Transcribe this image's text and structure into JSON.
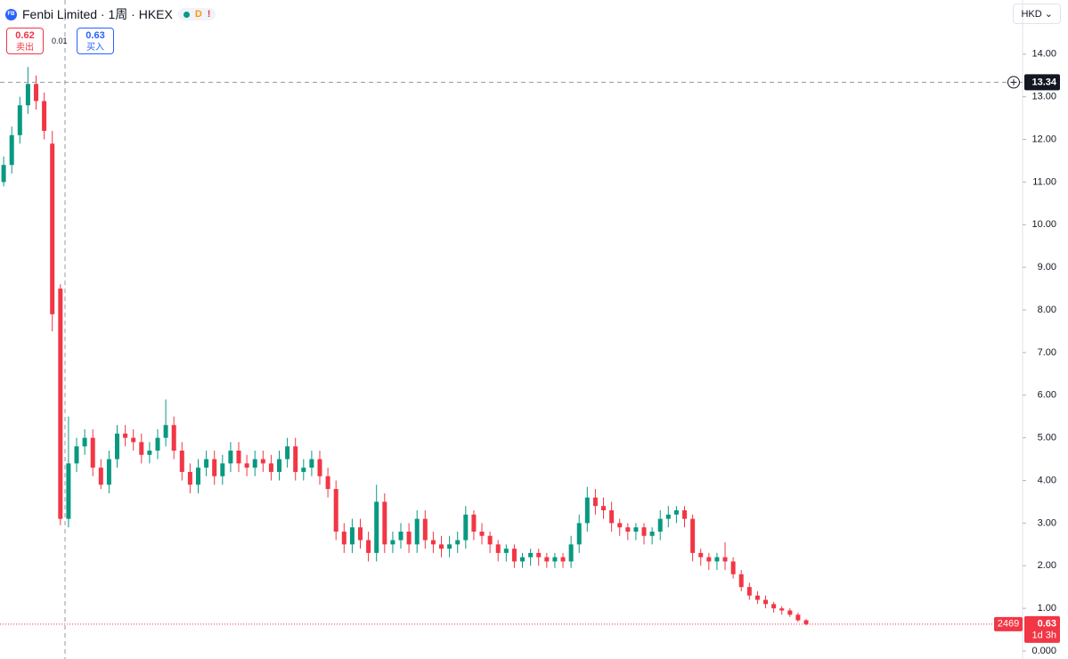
{
  "header": {
    "icon": "FB",
    "title": "Fenbi Limited · 1周 · HKEX",
    "badges": [
      "D",
      "!"
    ],
    "sell_price": 0.62,
    "sell_label": "卖出",
    "spread": 0.01,
    "buy_price": 0.63,
    "buy_label": "买入"
  },
  "chart_data": {
    "type": "candlestick",
    "currency": "HKD",
    "up_color": "#089981",
    "down_color": "#f23645",
    "open": [
      11.0,
      11.4,
      12.1,
      12.8,
      13.3,
      12.9,
      11.9,
      8.5,
      3.1,
      4.4,
      4.8,
      5.0,
      4.3,
      3.9,
      4.5,
      5.1,
      5.0,
      4.9,
      4.6,
      4.7,
      5.0,
      5.3,
      4.7,
      4.2,
      3.9,
      4.3,
      4.5,
      4.1,
      4.4,
      4.7,
      4.4,
      4.3,
      4.5,
      4.4,
      4.2,
      4.5,
      4.8,
      4.2,
      4.3,
      4.5,
      4.1,
      3.8,
      2.8,
      2.5,
      2.9,
      2.6,
      2.3,
      3.5,
      2.5,
      2.6,
      2.8,
      2.5,
      3.1,
      2.6,
      2.5,
      2.4,
      2.5,
      2.6,
      3.2,
      2.8,
      2.7,
      2.5,
      2.3,
      2.4,
      2.1,
      2.2,
      2.3,
      2.2,
      2.1,
      2.2,
      2.1,
      2.5,
      3.0,
      3.6,
      3.4,
      3.3,
      3.0,
      2.9,
      2.8,
      2.9,
      2.7,
      2.8,
      3.1,
      3.2,
      3.3,
      3.1,
      2.3,
      2.2,
      2.1,
      2.2,
      2.1,
      1.8,
      1.5,
      1.3,
      1.2,
      1.1,
      1.0,
      0.95,
      0.85,
      0.72
    ],
    "high": [
      11.6,
      12.3,
      13.0,
      13.7,
      13.5,
      13.1,
      12.2,
      8.6,
      5.5,
      5.0,
      5.2,
      5.2,
      4.5,
      4.7,
      5.3,
      5.3,
      5.2,
      5.1,
      4.9,
      5.2,
      5.9,
      5.5,
      4.9,
      4.4,
      4.5,
      4.7,
      4.7,
      4.6,
      4.9,
      4.9,
      4.6,
      4.7,
      4.7,
      4.6,
      4.7,
      5.0,
      5.0,
      4.5,
      4.7,
      4.7,
      4.3,
      4.0,
      3.0,
      3.1,
      3.1,
      2.8,
      3.9,
      3.7,
      2.8,
      3.0,
      3.0,
      3.3,
      3.3,
      2.8,
      2.7,
      2.7,
      2.8,
      3.4,
      3.3,
      3.0,
      2.8,
      2.6,
      2.5,
      2.5,
      2.3,
      2.4,
      2.4,
      2.3,
      2.3,
      2.3,
      2.7,
      3.2,
      3.85,
      3.8,
      3.6,
      3.5,
      3.1,
      3.0,
      3.0,
      3.0,
      2.9,
      3.3,
      3.4,
      3.4,
      3.4,
      3.2,
      2.4,
      2.3,
      2.3,
      2.55,
      2.2,
      1.9,
      1.6,
      1.4,
      1.3,
      1.15,
      1.05,
      1.0,
      0.9,
      0.75
    ],
    "low": [
      10.9,
      11.2,
      11.9,
      12.6,
      12.7,
      12.0,
      7.5,
      2.95,
      2.9,
      4.2,
      4.6,
      4.1,
      3.8,
      3.7,
      4.3,
      4.8,
      4.7,
      4.4,
      4.4,
      4.5,
      4.8,
      4.5,
      4.0,
      3.7,
      3.7,
      4.1,
      3.9,
      3.9,
      4.2,
      4.2,
      4.1,
      4.1,
      4.2,
      4.0,
      4.0,
      4.3,
      4.0,
      4.0,
      4.1,
      3.9,
      3.6,
      2.6,
      2.3,
      2.3,
      2.4,
      2.1,
      2.1,
      2.3,
      2.3,
      2.4,
      2.3,
      2.3,
      2.4,
      2.3,
      2.2,
      2.2,
      2.3,
      2.4,
      2.6,
      2.5,
      2.3,
      2.1,
      2.1,
      1.95,
      1.95,
      2.0,
      2.0,
      1.95,
      1.95,
      1.95,
      1.95,
      2.3,
      2.8,
      3.2,
      3.1,
      2.8,
      2.7,
      2.6,
      2.6,
      2.5,
      2.5,
      2.6,
      2.9,
      3.0,
      2.9,
      2.1,
      2.0,
      1.9,
      1.9,
      1.9,
      1.7,
      1.4,
      1.2,
      1.1,
      1.0,
      0.9,
      0.85,
      0.8,
      0.68,
      0.6
    ],
    "close": [
      11.4,
      12.1,
      12.8,
      13.3,
      12.9,
      12.2,
      7.9,
      3.1,
      4.4,
      4.8,
      5.0,
      4.3,
      3.9,
      4.5,
      5.1,
      5.0,
      4.9,
      4.6,
      4.7,
      5.0,
      5.3,
      4.7,
      4.2,
      3.9,
      4.3,
      4.5,
      4.1,
      4.4,
      4.7,
      4.4,
      4.3,
      4.5,
      4.4,
      4.2,
      4.5,
      4.8,
      4.2,
      4.3,
      4.5,
      4.1,
      3.8,
      2.8,
      2.5,
      2.9,
      2.6,
      2.3,
      3.5,
      2.5,
      2.6,
      2.8,
      2.5,
      3.1,
      2.6,
      2.5,
      2.4,
      2.5,
      2.6,
      3.2,
      2.8,
      2.7,
      2.5,
      2.3,
      2.4,
      2.1,
      2.2,
      2.3,
      2.2,
      2.1,
      2.2,
      2.1,
      2.5,
      3.0,
      3.6,
      3.4,
      3.3,
      3.0,
      2.9,
      2.8,
      2.9,
      2.7,
      2.8,
      3.1,
      3.2,
      3.3,
      3.1,
      2.3,
      2.2,
      2.1,
      2.2,
      2.1,
      1.8,
      1.5,
      1.3,
      1.2,
      1.1,
      1.0,
      0.95,
      0.85,
      0.72,
      0.63
    ],
    "xlim": [
      -0.45,
      125.7
    ],
    "ylim": [
      -0.188,
      15.27
    ],
    "yticks": [
      {
        "value": 0,
        "label": "0.000"
      },
      {
        "value": 1,
        "label": "1.00"
      },
      {
        "value": 2,
        "label": "2.00"
      },
      {
        "value": 3,
        "label": "3.00"
      },
      {
        "value": 4,
        "label": "4.00"
      },
      {
        "value": 5,
        "label": "5.00"
      },
      {
        "value": 6,
        "label": "6.00"
      },
      {
        "value": 7,
        "label": "7.00"
      },
      {
        "value": 8,
        "label": "8.00"
      },
      {
        "value": 9,
        "label": "9.00"
      },
      {
        "value": 10,
        "label": "10.00"
      },
      {
        "value": 11,
        "label": "11.00"
      },
      {
        "value": 12,
        "label": "12.00"
      },
      {
        "value": 13,
        "label": "13.00"
      },
      {
        "value": 14,
        "label": "14.00"
      }
    ],
    "crosshair": 13.34,
    "last_price": 0.63,
    "symbol_code": "2469",
    "countdown": "1d 3h"
  }
}
